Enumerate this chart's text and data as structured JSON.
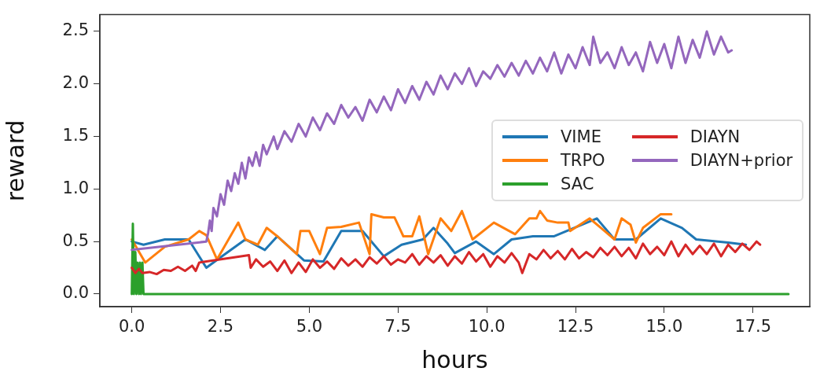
{
  "chart_data": {
    "type": "line",
    "xlabel": "hours",
    "ylabel": "reward",
    "xlim": [
      -0.9,
      19.1
    ],
    "ylim": [
      -0.12,
      2.66
    ],
    "xticks": [
      {
        "value": 0,
        "label": "0.0"
      },
      {
        "value": 2.5,
        "label": "2.5"
      },
      {
        "value": 5,
        "label": "5.0"
      },
      {
        "value": 7.5,
        "label": "7.5"
      },
      {
        "value": 10,
        "label": "10.0"
      },
      {
        "value": 12.5,
        "label": "12.5"
      },
      {
        "value": 15,
        "label": "15.0"
      },
      {
        "value": 17.5,
        "label": "17.5"
      }
    ],
    "yticks": [
      {
        "value": 0,
        "label": "0.0"
      },
      {
        "value": 0.5,
        "label": "0.5"
      },
      {
        "value": 1,
        "label": "1.0"
      },
      {
        "value": 1.5,
        "label": "1.5"
      },
      {
        "value": 2,
        "label": "2.0"
      },
      {
        "value": 2.5,
        "label": "2.5"
      }
    ],
    "grid": false,
    "legend": "center right",
    "marker": "none",
    "line_style": "solid",
    "series": [
      {
        "name": "VIME",
        "color": "#1f77b4",
        "x": [
          0,
          0.33,
          0.93,
          1.6,
          2.1,
          2.5,
          3.2,
          3.75,
          4.1,
          4.85,
          5.4,
          5.9,
          6.5,
          7.1,
          7.6,
          8.2,
          8.5,
          8.9,
          9.1,
          9.7,
          10.2,
          10.7,
          11.3,
          11.9,
          13.1,
          13.6,
          14.2,
          14.9,
          15.5,
          15.9,
          16.8,
          17.3
        ],
        "values": [
          0.5,
          0.47,
          0.52,
          0.52,
          0.25,
          0.35,
          0.52,
          0.42,
          0.55,
          0.32,
          0.31,
          0.6,
          0.6,
          0.36,
          0.47,
          0.52,
          0.63,
          0.48,
          0.39,
          0.5,
          0.38,
          0.52,
          0.55,
          0.55,
          0.72,
          0.52,
          0.52,
          0.72,
          0.63,
          0.52,
          0.49,
          0.47
        ]
      },
      {
        "name": "TRPO",
        "color": "#ff7f0e",
        "x": [
          0,
          0.38,
          0.93,
          1.6,
          1.9,
          2.1,
          2.4,
          3.0,
          3.2,
          3.55,
          3.8,
          4.1,
          4.65,
          4.75,
          5.0,
          5.3,
          5.5,
          5.9,
          6.4,
          6.7,
          6.75,
          7.1,
          7.4,
          7.65,
          7.9,
          8.1,
          8.35,
          8.7,
          9.0,
          9.3,
          9.6,
          10.2,
          10.8,
          11.2,
          11.4,
          11.5,
          11.7,
          12.0,
          12.3,
          12.35,
          12.9,
          13.6,
          13.8,
          14.05,
          14.2,
          14.4,
          14.9,
          15.2
        ],
        "values": [
          0.52,
          0.3,
          0.45,
          0.52,
          0.6,
          0.56,
          0.33,
          0.68,
          0.52,
          0.47,
          0.63,
          0.55,
          0.38,
          0.6,
          0.6,
          0.38,
          0.63,
          0.64,
          0.68,
          0.38,
          0.76,
          0.73,
          0.73,
          0.55,
          0.55,
          0.74,
          0.38,
          0.72,
          0.6,
          0.79,
          0.52,
          0.68,
          0.57,
          0.72,
          0.72,
          0.79,
          0.7,
          0.68,
          0.68,
          0.6,
          0.72,
          0.52,
          0.72,
          0.66,
          0.49,
          0.63,
          0.76,
          0.76
        ]
      },
      {
        "name": "SAC",
        "color": "#2ca02c",
        "x": [
          0,
          0.03,
          0.06,
          0.1,
          0.13,
          0.16,
          0.2,
          0.23,
          0.26,
          0.3,
          0.33,
          18.5
        ],
        "values": [
          0,
          0.67,
          0,
          0.4,
          0,
          0.3,
          0,
          0.3,
          0,
          0.3,
          0,
          0
        ]
      },
      {
        "name": "DIAYN",
        "color": "#d62728",
        "x": [
          0,
          0.1,
          0.2,
          0.3,
          0.5,
          0.7,
          0.9,
          1.1,
          1.3,
          1.5,
          1.7,
          1.8,
          1.9,
          3.3,
          3.35,
          3.5,
          3.7,
          3.9,
          4.1,
          4.3,
          4.5,
          4.7,
          4.9,
          5.1,
          5.3,
          5.5,
          5.7,
          5.9,
          6.1,
          6.3,
          6.5,
          6.7,
          6.9,
          7.1,
          7.3,
          7.5,
          7.7,
          7.9,
          8.1,
          8.3,
          8.5,
          8.7,
          8.9,
          9.1,
          9.3,
          9.5,
          9.7,
          9.9,
          10.1,
          10.3,
          10.5,
          10.7,
          10.9,
          11.0,
          11.2,
          11.4,
          11.6,
          11.8,
          12.0,
          12.2,
          12.4,
          12.6,
          12.8,
          13.0,
          13.2,
          13.4,
          13.6,
          13.8,
          14.0,
          14.2,
          14.4,
          14.6,
          14.8,
          15.0,
          15.2,
          15.4,
          15.6,
          15.8,
          16.0,
          16.2,
          16.4,
          16.6,
          16.8,
          17.0,
          17.2,
          17.4,
          17.6,
          17.7
        ],
        "values": [
          0.25,
          0.2,
          0.24,
          0.2,
          0.21,
          0.19,
          0.23,
          0.22,
          0.26,
          0.22,
          0.27,
          0.22,
          0.3,
          0.37,
          0.25,
          0.33,
          0.26,
          0.31,
          0.22,
          0.32,
          0.2,
          0.3,
          0.21,
          0.33,
          0.25,
          0.31,
          0.24,
          0.34,
          0.27,
          0.33,
          0.26,
          0.35,
          0.29,
          0.36,
          0.28,
          0.33,
          0.3,
          0.38,
          0.28,
          0.36,
          0.3,
          0.37,
          0.27,
          0.36,
          0.29,
          0.4,
          0.31,
          0.38,
          0.26,
          0.36,
          0.3,
          0.39,
          0.3,
          0.2,
          0.38,
          0.33,
          0.42,
          0.34,
          0.41,
          0.33,
          0.43,
          0.34,
          0.4,
          0.35,
          0.44,
          0.37,
          0.45,
          0.36,
          0.44,
          0.34,
          0.48,
          0.38,
          0.45,
          0.37,
          0.5,
          0.36,
          0.47,
          0.38,
          0.46,
          0.38,
          0.48,
          0.36,
          0.47,
          0.4,
          0.48,
          0.42,
          0.5,
          0.47
        ]
      },
      {
        "name": "DIAYN+prior",
        "color": "#9467bd",
        "x": [
          0,
          2.1,
          2.15,
          2.2,
          2.25,
          2.3,
          2.4,
          2.5,
          2.6,
          2.7,
          2.8,
          2.9,
          3.0,
          3.1,
          3.2,
          3.3,
          3.4,
          3.5,
          3.6,
          3.7,
          3.8,
          4.0,
          4.1,
          4.3,
          4.5,
          4.7,
          4.9,
          5.1,
          5.3,
          5.5,
          5.7,
          5.9,
          6.1,
          6.3,
          6.5,
          6.7,
          6.9,
          7.1,
          7.3,
          7.5,
          7.7,
          7.9,
          8.1,
          8.3,
          8.5,
          8.7,
          8.9,
          9.1,
          9.3,
          9.5,
          9.7,
          9.9,
          10.1,
          10.3,
          10.5,
          10.7,
          10.9,
          11.1,
          11.3,
          11.5,
          11.7,
          11.9,
          12.1,
          12.3,
          12.5,
          12.7,
          12.9,
          13.0,
          13.2,
          13.4,
          13.6,
          13.8,
          14.0,
          14.2,
          14.4,
          14.6,
          14.8,
          15.0,
          15.2,
          15.4,
          15.6,
          15.8,
          16.0,
          16.2,
          16.4,
          16.6,
          16.8,
          16.9
        ],
        "values": [
          0.42,
          0.5,
          0.58,
          0.7,
          0.6,
          0.82,
          0.74,
          0.95,
          0.85,
          1.08,
          0.98,
          1.15,
          1.05,
          1.25,
          1.1,
          1.3,
          1.22,
          1.35,
          1.22,
          1.42,
          1.33,
          1.5,
          1.38,
          1.55,
          1.45,
          1.62,
          1.5,
          1.68,
          1.56,
          1.72,
          1.62,
          1.8,
          1.68,
          1.78,
          1.65,
          1.85,
          1.73,
          1.88,
          1.75,
          1.95,
          1.82,
          1.98,
          1.85,
          2.02,
          1.9,
          2.08,
          1.95,
          2.1,
          2.0,
          2.15,
          1.98,
          2.12,
          2.05,
          2.18,
          2.07,
          2.2,
          2.08,
          2.22,
          2.1,
          2.25,
          2.12,
          2.3,
          2.1,
          2.28,
          2.15,
          2.35,
          2.18,
          2.45,
          2.2,
          2.3,
          2.15,
          2.35,
          2.18,
          2.3,
          2.12,
          2.4,
          2.2,
          2.38,
          2.15,
          2.45,
          2.2,
          2.42,
          2.25,
          2.5,
          2.28,
          2.45,
          2.3,
          2.32
        ]
      }
    ]
  }
}
